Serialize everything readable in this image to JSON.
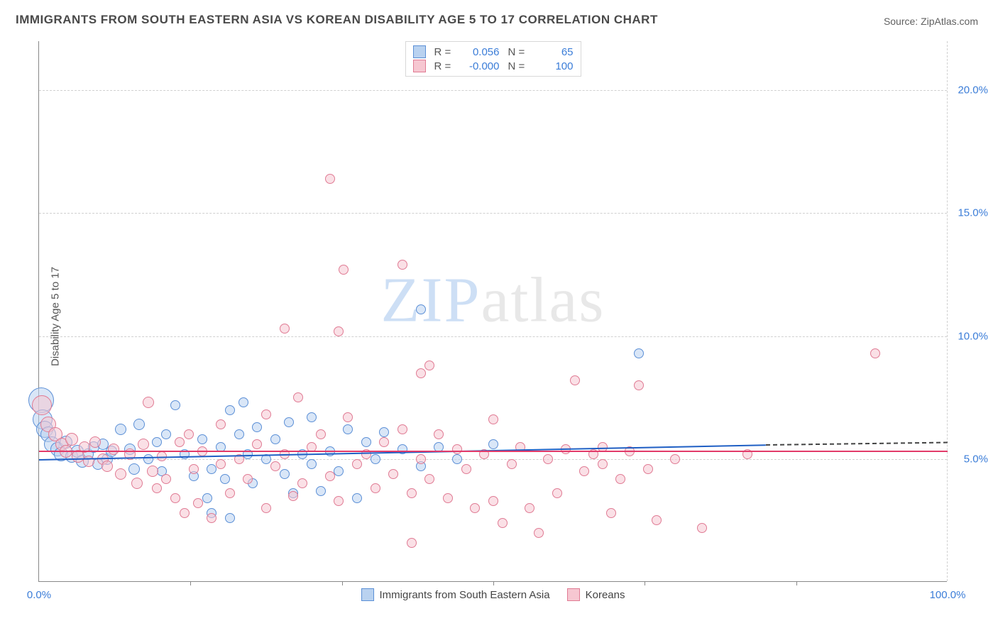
{
  "title": "IMMIGRANTS FROM SOUTH EASTERN ASIA VS KOREAN DISABILITY AGE 5 TO 17 CORRELATION CHART",
  "source": "Source: ZipAtlas.com",
  "ylabel": "Disability Age 5 to 17",
  "watermark": {
    "part1": "ZIP",
    "part2": "atlas"
  },
  "chart": {
    "type": "scatter-correlation",
    "background_color": "#ffffff",
    "grid_color": "#d0d0d0",
    "axis_color": "#888888",
    "tick_label_color": "#3b7dd8",
    "xlim": [
      0,
      100
    ],
    "ylim": [
      0,
      22
    ],
    "yticks": [
      {
        "v": 5,
        "label": "5.0%"
      },
      {
        "v": 10,
        "label": "10.0%"
      },
      {
        "v": 15,
        "label": "15.0%"
      },
      {
        "v": 20,
        "label": "20.0%"
      }
    ],
    "xticks_major": [
      {
        "v": 0,
        "label": "0.0%"
      },
      {
        "v": 100,
        "label": "100.0%"
      }
    ],
    "xticks_minor": [
      16.67,
      33.33,
      50,
      66.67,
      83.33
    ],
    "series": [
      {
        "key": "sea",
        "name": "Immigrants from South Eastern Asia",
        "fill_color": "#b9d2f0",
        "fill_opacity": 0.55,
        "stroke_color": "#5b8fd6",
        "line_color": "#1f5fc4",
        "r_label": "R =",
        "r_value": "0.056",
        "n_label": "N =",
        "n_value": "65",
        "trend": {
          "x1": 0,
          "y1": 5.0,
          "x2": 80,
          "y2": 5.6,
          "dash_to_x": 100,
          "dash_to_y": 5.7
        },
        "points": [
          {
            "x": 0.2,
            "y": 7.4,
            "r": 18
          },
          {
            "x": 0.4,
            "y": 6.6,
            "r": 14
          },
          {
            "x": 0.6,
            "y": 6.2,
            "r": 12
          },
          {
            "x": 1,
            "y": 6.0,
            "r": 11
          },
          {
            "x": 1.4,
            "y": 5.6,
            "r": 11
          },
          {
            "x": 2,
            "y": 5.4,
            "r": 10
          },
          {
            "x": 2.4,
            "y": 5.2,
            "r": 10
          },
          {
            "x": 3,
            "y": 5.7,
            "r": 9
          },
          {
            "x": 3.6,
            "y": 5.1,
            "r": 9
          },
          {
            "x": 4.2,
            "y": 5.3,
            "r": 9
          },
          {
            "x": 4.8,
            "y": 4.9,
            "r": 9
          },
          {
            "x": 5.4,
            "y": 5.2,
            "r": 8
          },
          {
            "x": 6,
            "y": 5.5,
            "r": 8
          },
          {
            "x": 6.5,
            "y": 4.8,
            "r": 8
          },
          {
            "x": 7,
            "y": 5.6,
            "r": 8
          },
          {
            "x": 7.5,
            "y": 5.0,
            "r": 8
          },
          {
            "x": 8,
            "y": 5.3,
            "r": 8
          },
          {
            "x": 9,
            "y": 6.2,
            "r": 8
          },
          {
            "x": 10,
            "y": 5.4,
            "r": 8
          },
          {
            "x": 10.5,
            "y": 4.6,
            "r": 8
          },
          {
            "x": 11,
            "y": 6.4,
            "r": 8
          },
          {
            "x": 12,
            "y": 5.0,
            "r": 7
          },
          {
            "x": 13,
            "y": 5.7,
            "r": 7
          },
          {
            "x": 13.5,
            "y": 4.5,
            "r": 7
          },
          {
            "x": 14,
            "y": 6.0,
            "r": 7
          },
          {
            "x": 15,
            "y": 7.2,
            "r": 7
          },
          {
            "x": 16,
            "y": 5.2,
            "r": 7
          },
          {
            "x": 17,
            "y": 4.3,
            "r": 7
          },
          {
            "x": 18,
            "y": 5.8,
            "r": 7
          },
          {
            "x": 18.5,
            "y": 3.4,
            "r": 7
          },
          {
            "x": 19,
            "y": 4.6,
            "r": 7
          },
          {
            "x": 19,
            "y": 2.8,
            "r": 7
          },
          {
            "x": 20,
            "y": 5.5,
            "r": 7
          },
          {
            "x": 20.5,
            "y": 4.2,
            "r": 7
          },
          {
            "x": 21,
            "y": 7.0,
            "r": 7
          },
          {
            "x": 21,
            "y": 2.6,
            "r": 7
          },
          {
            "x": 22,
            "y": 6.0,
            "r": 7
          },
          {
            "x": 22.5,
            "y": 7.3,
            "r": 7
          },
          {
            "x": 23,
            "y": 5.2,
            "r": 7
          },
          {
            "x": 23.5,
            "y": 4.0,
            "r": 7
          },
          {
            "x": 24,
            "y": 6.3,
            "r": 7
          },
          {
            "x": 25,
            "y": 5.0,
            "r": 7
          },
          {
            "x": 26,
            "y": 5.8,
            "r": 7
          },
          {
            "x": 27,
            "y": 4.4,
            "r": 7
          },
          {
            "x": 27.5,
            "y": 6.5,
            "r": 7
          },
          {
            "x": 28,
            "y": 3.6,
            "r": 7
          },
          {
            "x": 29,
            "y": 5.2,
            "r": 7
          },
          {
            "x": 30,
            "y": 4.8,
            "r": 7
          },
          {
            "x": 30,
            "y": 6.7,
            "r": 7
          },
          {
            "x": 31,
            "y": 3.7,
            "r": 7
          },
          {
            "x": 32,
            "y": 5.3,
            "r": 7
          },
          {
            "x": 33,
            "y": 4.5,
            "r": 7
          },
          {
            "x": 34,
            "y": 6.2,
            "r": 7
          },
          {
            "x": 35,
            "y": 3.4,
            "r": 7
          },
          {
            "x": 36,
            "y": 5.7,
            "r": 7
          },
          {
            "x": 37,
            "y": 5.0,
            "r": 7
          },
          {
            "x": 38,
            "y": 6.1,
            "r": 7
          },
          {
            "x": 40,
            "y": 5.4,
            "r": 7
          },
          {
            "x": 42,
            "y": 4.7,
            "r": 7
          },
          {
            "x": 42,
            "y": 11.1,
            "r": 7
          },
          {
            "x": 44,
            "y": 5.5,
            "r": 7
          },
          {
            "x": 46,
            "y": 5.0,
            "r": 7
          },
          {
            "x": 50,
            "y": 5.6,
            "r": 7
          },
          {
            "x": 66,
            "y": 9.3,
            "r": 7
          }
        ]
      },
      {
        "key": "korean",
        "name": "Koreans",
        "fill_color": "#f6c7d1",
        "fill_opacity": 0.55,
        "stroke_color": "#e07a93",
        "line_color": "#e23b6a",
        "r_label": "R =",
        "r_value": "-0.000",
        "n_label": "N =",
        "n_value": "100",
        "trend": {
          "x1": 0,
          "y1": 5.35,
          "x2": 100,
          "y2": 5.35
        },
        "points": [
          {
            "x": 0.3,
            "y": 7.2,
            "r": 14
          },
          {
            "x": 1,
            "y": 6.4,
            "r": 11
          },
          {
            "x": 1.8,
            "y": 6.0,
            "r": 10
          },
          {
            "x": 2.5,
            "y": 5.6,
            "r": 9
          },
          {
            "x": 3,
            "y": 5.3,
            "r": 9
          },
          {
            "x": 3.6,
            "y": 5.8,
            "r": 9
          },
          {
            "x": 4.3,
            "y": 5.1,
            "r": 9
          },
          {
            "x": 5,
            "y": 5.5,
            "r": 8
          },
          {
            "x": 5.5,
            "y": 4.9,
            "r": 8
          },
          {
            "x": 6.2,
            "y": 5.7,
            "r": 8
          },
          {
            "x": 7,
            "y": 5.0,
            "r": 8
          },
          {
            "x": 7.5,
            "y": 4.7,
            "r": 8
          },
          {
            "x": 8.2,
            "y": 5.4,
            "r": 8
          },
          {
            "x": 9,
            "y": 4.4,
            "r": 8
          },
          {
            "x": 10,
            "y": 5.2,
            "r": 8
          },
          {
            "x": 10.8,
            "y": 4.0,
            "r": 8
          },
          {
            "x": 11.5,
            "y": 5.6,
            "r": 8
          },
          {
            "x": 12,
            "y": 7.3,
            "r": 8
          },
          {
            "x": 12.5,
            "y": 4.5,
            "r": 8
          },
          {
            "x": 13,
            "y": 3.8,
            "r": 7
          },
          {
            "x": 13.5,
            "y": 5.1,
            "r": 7
          },
          {
            "x": 14,
            "y": 4.2,
            "r": 7
          },
          {
            "x": 15,
            "y": 3.4,
            "r": 7
          },
          {
            "x": 15.5,
            "y": 5.7,
            "r": 7
          },
          {
            "x": 16,
            "y": 2.8,
            "r": 7
          },
          {
            "x": 16.5,
            "y": 6.0,
            "r": 7
          },
          {
            "x": 17,
            "y": 4.6,
            "r": 7
          },
          {
            "x": 17.5,
            "y": 3.2,
            "r": 7
          },
          {
            "x": 18,
            "y": 5.3,
            "r": 7
          },
          {
            "x": 19,
            "y": 2.6,
            "r": 7
          },
          {
            "x": 20,
            "y": 4.8,
            "r": 7
          },
          {
            "x": 20,
            "y": 6.4,
            "r": 7
          },
          {
            "x": 21,
            "y": 3.6,
            "r": 7
          },
          {
            "x": 22,
            "y": 5.0,
            "r": 7
          },
          {
            "x": 23,
            "y": 4.2,
            "r": 7
          },
          {
            "x": 24,
            "y": 5.6,
            "r": 7
          },
          {
            "x": 25,
            "y": 3.0,
            "r": 7
          },
          {
            "x": 25,
            "y": 6.8,
            "r": 7
          },
          {
            "x": 26,
            "y": 4.7,
            "r": 7
          },
          {
            "x": 27,
            "y": 5.2,
            "r": 7
          },
          {
            "x": 27,
            "y": 10.3,
            "r": 7
          },
          {
            "x": 28,
            "y": 3.5,
            "r": 7
          },
          {
            "x": 28.5,
            "y": 7.5,
            "r": 7
          },
          {
            "x": 29,
            "y": 4.0,
            "r": 7
          },
          {
            "x": 30,
            "y": 5.5,
            "r": 7
          },
          {
            "x": 31,
            "y": 6.0,
            "r": 7
          },
          {
            "x": 32,
            "y": 4.3,
            "r": 7
          },
          {
            "x": 32,
            "y": 16.4,
            "r": 7
          },
          {
            "x": 33,
            "y": 10.2,
            "r": 7
          },
          {
            "x": 33,
            "y": 3.3,
            "r": 7
          },
          {
            "x": 33.5,
            "y": 12.7,
            "r": 7
          },
          {
            "x": 34,
            "y": 6.7,
            "r": 7
          },
          {
            "x": 35,
            "y": 4.8,
            "r": 7
          },
          {
            "x": 36,
            "y": 5.2,
            "r": 7
          },
          {
            "x": 37,
            "y": 3.8,
            "r": 7
          },
          {
            "x": 38,
            "y": 5.7,
            "r": 7
          },
          {
            "x": 39,
            "y": 4.4,
            "r": 7
          },
          {
            "x": 40,
            "y": 6.2,
            "r": 7
          },
          {
            "x": 40,
            "y": 12.9,
            "r": 7
          },
          {
            "x": 41,
            "y": 3.6,
            "r": 7
          },
          {
            "x": 41,
            "y": 1.6,
            "r": 7
          },
          {
            "x": 42,
            "y": 5.0,
            "r": 7
          },
          {
            "x": 42,
            "y": 8.5,
            "r": 7
          },
          {
            "x": 43,
            "y": 8.8,
            "r": 7
          },
          {
            "x": 43,
            "y": 4.2,
            "r": 7
          },
          {
            "x": 44,
            "y": 6.0,
            "r": 7
          },
          {
            "x": 45,
            "y": 3.4,
            "r": 7
          },
          {
            "x": 46,
            "y": 5.4,
            "r": 7
          },
          {
            "x": 47,
            "y": 4.6,
            "r": 7
          },
          {
            "x": 48,
            "y": 3.0,
            "r": 7
          },
          {
            "x": 49,
            "y": 5.2,
            "r": 7
          },
          {
            "x": 50,
            "y": 3.3,
            "r": 7
          },
          {
            "x": 50,
            "y": 6.6,
            "r": 7
          },
          {
            "x": 51,
            "y": 2.4,
            "r": 7
          },
          {
            "x": 52,
            "y": 4.8,
            "r": 7
          },
          {
            "x": 53,
            "y": 5.5,
            "r": 7
          },
          {
            "x": 54,
            "y": 3.0,
            "r": 7
          },
          {
            "x": 55,
            "y": 2.0,
            "r": 7
          },
          {
            "x": 56,
            "y": 5.0,
            "r": 7
          },
          {
            "x": 57,
            "y": 3.6,
            "r": 7
          },
          {
            "x": 58,
            "y": 5.4,
            "r": 7
          },
          {
            "x": 59,
            "y": 8.2,
            "r": 7
          },
          {
            "x": 60,
            "y": 4.5,
            "r": 7
          },
          {
            "x": 61,
            "y": 5.2,
            "r": 7
          },
          {
            "x": 62,
            "y": 4.8,
            "r": 7
          },
          {
            "x": 62,
            "y": 5.5,
            "r": 7
          },
          {
            "x": 63,
            "y": 2.8,
            "r": 7
          },
          {
            "x": 64,
            "y": 4.2,
            "r": 7
          },
          {
            "x": 65,
            "y": 5.3,
            "r": 7
          },
          {
            "x": 66,
            "y": 8.0,
            "r": 7
          },
          {
            "x": 67,
            "y": 4.6,
            "r": 7
          },
          {
            "x": 68,
            "y": 2.5,
            "r": 7
          },
          {
            "x": 70,
            "y": 5.0,
            "r": 7
          },
          {
            "x": 73,
            "y": 2.2,
            "r": 7
          },
          {
            "x": 78,
            "y": 5.2,
            "r": 7
          },
          {
            "x": 92,
            "y": 9.3,
            "r": 7
          }
        ]
      }
    ]
  }
}
